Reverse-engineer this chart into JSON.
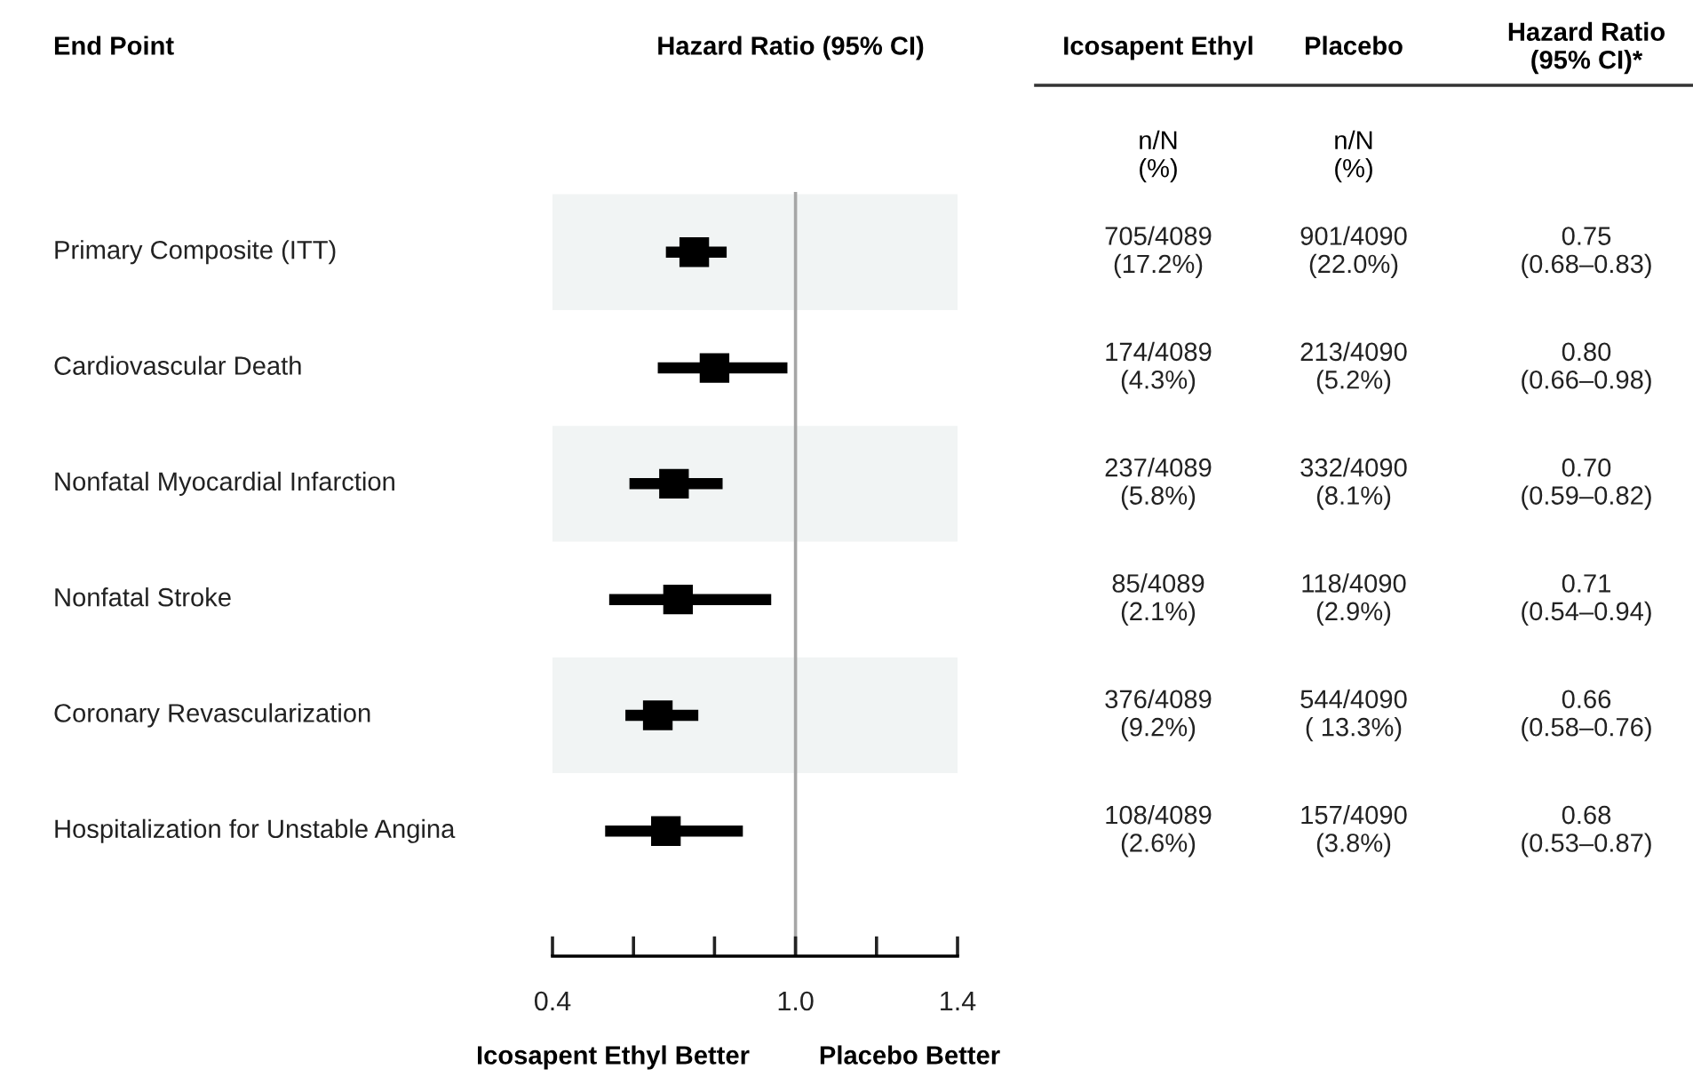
{
  "chart_data": {
    "type": "scatter",
    "title": "Hazard Ratio (95% CI)",
    "orientation": "horizontal",
    "categories": [
      "Primary Composite (ITT)",
      "Cardiovascular Death",
      "Nonfatal Myocardial Infarction",
      "Nonfatal Stroke",
      "Coronary Revascularization",
      "Hospitalization for Unstable Angina"
    ],
    "values": [
      0.75,
      0.8,
      0.7,
      0.71,
      0.66,
      0.68
    ],
    "errors": [
      [
        0.68,
        0.83
      ],
      [
        0.66,
        0.98
      ],
      [
        0.59,
        0.82
      ],
      [
        0.54,
        0.94
      ],
      [
        0.58,
        0.76
      ],
      [
        0.53,
        0.87
      ]
    ],
    "color": "#000000",
    "marker": "square",
    "value_labels": [
      "0.75\n(0.68–0.83)",
      "0.80\n(0.66–0.98)",
      "0.70\n(0.59–0.82)",
      "0.71\n(0.54–0.94)",
      "0.66\n(0.58–0.76)",
      "0.68\n(0.53–0.87)"
    ],
    "xlim": [
      0.4,
      1.4
    ],
    "xticks": [
      {
        "value": 0.4,
        "label": "0.4"
      },
      {
        "value": 0.6,
        "label": null
      },
      {
        "value": 0.8,
        "label": null
      },
      {
        "value": 1,
        "label": "1.0"
      },
      {
        "value": 1.2,
        "label": null
      },
      {
        "value": 1.4,
        "label": "1.4"
      }
    ],
    "ref_lines": [
      {
        "axis": "x",
        "value": 1,
        "label": null,
        "color": "#a6a6a6"
      }
    ],
    "bands": [
      {
        "axis": "y",
        "from": "Primary Composite (ITT)",
        "to": "Primary Composite (ITT)",
        "label": null,
        "color": "#f1f4f4"
      },
      {
        "axis": "y",
        "from": "Nonfatal Myocardial Infarction",
        "to": "Nonfatal Myocardial Infarction",
        "label": null,
        "color": "#f1f4f4"
      },
      {
        "axis": "y",
        "from": "Coronary Revascularization",
        "to": "Coronary Revascularization",
        "label": null,
        "color": "#f1f4f4"
      }
    ],
    "grid": false,
    "annotations": [
      "Icosapent Ethyl Better",
      "Placebo Better",
      "Icosapent Ethyl",
      "Placebo",
      "Hazard Ratio\n(95% CI)*",
      "n/N\n(%)",
      "n/N\n(%)",
      "705/4089\n(17.2%)",
      "901/4090\n(22.0%)",
      "174/4089\n(4.3%)",
      "213/4090\n(5.2%)",
      "237/4089\n(5.8%)",
      "332/4090\n(8.1%)",
      "85/4089\n(2.1%)",
      "118/4090\n(2.9%)",
      "376/4089\n(9.2%)",
      "544/4090\n( 13.3%)",
      "108/4089\n(2.6%)",
      "157/4090\n(3.8%)",
      "End Point"
    ]
  }
}
